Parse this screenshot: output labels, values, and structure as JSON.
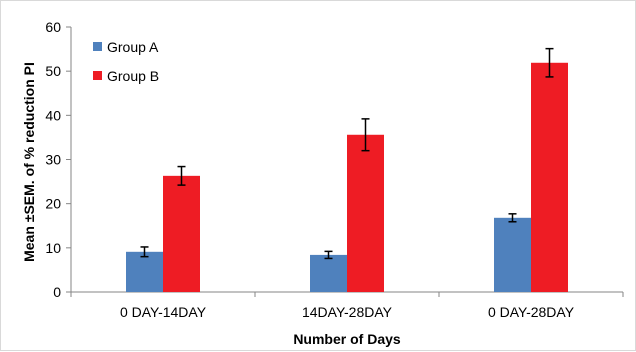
{
  "chart_data": {
    "type": "bar",
    "title": "",
    "xlabel": "Number of Days",
    "ylabel": "Mean ±SEM. of % reduction PI",
    "categories": [
      "0 DAY-14DAY",
      "14DAY-28DAY",
      "0 DAY-28DAY"
    ],
    "ylim": [
      0,
      60
    ],
    "yticks": [
      0,
      10,
      20,
      30,
      40,
      50,
      60
    ],
    "grid": false,
    "legend": "top-left",
    "series": [
      {
        "name": "Group A",
        "color": "#4f81bd",
        "values": [
          9.1,
          8.4,
          16.8
        ],
        "errors": [
          1.1,
          0.8,
          0.9
        ]
      },
      {
        "name": "Group B",
        "color": "#ee1c24",
        "values": [
          26.3,
          35.6,
          51.9
        ],
        "errors": [
          2.1,
          3.6,
          3.2
        ]
      }
    ]
  }
}
